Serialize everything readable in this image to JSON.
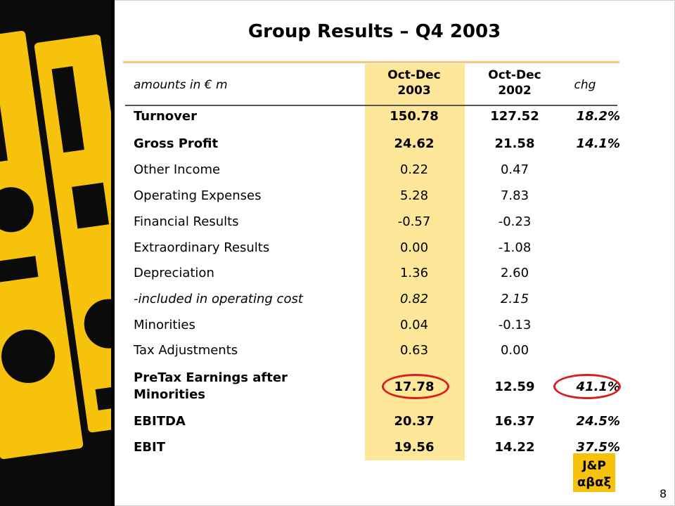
{
  "slide": {
    "title": "Group Results – Q4 2003",
    "page_number": "8",
    "brand_logo_text": "J&P αβαξ",
    "brand_color": "#f6c20c",
    "highlight_color": "#ffe79a",
    "circle_color": "#d81e1e"
  },
  "table": {
    "header": {
      "units": "amounts in € m",
      "col1_line1": "Oct-Dec",
      "col1_line2": "2003",
      "col2_line1": "Oct-Dec",
      "col2_line2": "2002",
      "col3": "chg"
    },
    "rows": [
      {
        "label": "Turnover",
        "v2003": "150.78",
        "v2002": "127.52",
        "chg": "18.2%",
        "style": "bold"
      },
      {
        "label": "Gross Profit",
        "v2003": "24.62",
        "v2002": "21.58",
        "chg": "14.1%",
        "style": "bold"
      },
      {
        "label": "Other Income",
        "v2003": "0.22",
        "v2002": "0.47",
        "chg": "",
        "style": "normal"
      },
      {
        "label": "Operating Expenses",
        "v2003": "5.28",
        "v2002": "7.83",
        "chg": "",
        "style": "normal"
      },
      {
        "label": "Financial Results",
        "v2003": "-0.57",
        "v2002": "-0.23",
        "chg": "",
        "style": "normal"
      },
      {
        "label": "Extraordinary Results",
        "v2003": "0.00",
        "v2002": "-1.08",
        "chg": "",
        "style": "normal"
      },
      {
        "label": "Depreciation",
        "v2003": "1.36",
        "v2002": "2.60",
        "chg": "",
        "style": "normal"
      },
      {
        "label": "-included in operating cost",
        "v2003": "0.82",
        "v2002": "2.15",
        "chg": "",
        "style": "italic"
      },
      {
        "label": "Minorities",
        "v2003": "0.04",
        "v2002": "-0.13",
        "chg": "",
        "style": "normal"
      },
      {
        "label": "Tax Adjustments",
        "v2003": "0.63",
        "v2002": "0.00",
        "chg": "",
        "style": "normal"
      },
      {
        "label_line1": "PreTax Earnings after",
        "label_line2": "Minorities",
        "v2003": "17.78",
        "v2002": "12.59",
        "chg": "41.1%",
        "style": "bold"
      },
      {
        "label": "EBITDA",
        "v2003": "20.37",
        "v2002": "16.37",
        "chg": "24.5%",
        "style": "bold"
      },
      {
        "label": "EBIT",
        "v2003": "19.56",
        "v2002": "14.22",
        "chg": "37.5%",
        "style": "bold"
      }
    ]
  }
}
